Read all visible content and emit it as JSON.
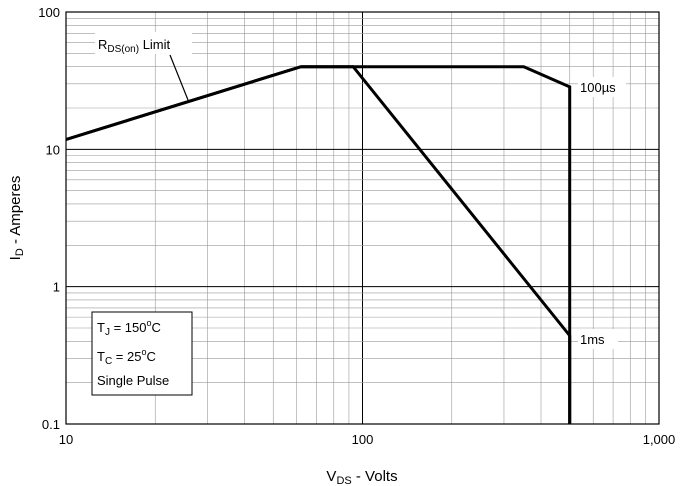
{
  "chart_data": {
    "type": "line",
    "x_scale": "log",
    "y_scale": "log",
    "xlim": [
      10,
      1000
    ],
    "ylim": [
      0.1,
      100
    ],
    "xlabel": {
      "main": "V",
      "sub": "DS",
      "rest": " - Volts"
    },
    "ylabel": {
      "main": "I",
      "sub": "D",
      "rest": " - Amperes"
    },
    "x_ticks": [
      {
        "value": 10,
        "label": "10"
      },
      {
        "value": 100,
        "label": "100"
      },
      {
        "value": 1000,
        "label": "1,000"
      }
    ],
    "y_ticks": [
      {
        "value": 100,
        "label": "100"
      },
      {
        "value": 10,
        "label": "10"
      },
      {
        "value": 1,
        "label": "1"
      },
      {
        "value": 0.1,
        "label": "0.1"
      }
    ],
    "grid": true,
    "series": [
      {
        "name": "100µs",
        "points": [
          [
            10,
            11.8
          ],
          [
            62,
            40
          ],
          [
            350,
            40
          ],
          [
            500,
            28.5
          ],
          [
            500,
            0.1
          ]
        ]
      },
      {
        "name": "1ms",
        "points": [
          [
            10,
            11.8
          ],
          [
            62,
            40
          ],
          [
            93,
            40
          ],
          [
            500,
            0.44
          ],
          [
            500,
            0.1
          ]
        ]
      }
    ],
    "rds_label": {
      "main": "R",
      "sub": "DS(on)",
      "rest": " Limit"
    },
    "conditions": {
      "tj": {
        "main": "T",
        "sub": "J",
        "rest": " = 150",
        "sup": "o",
        "unit": "C"
      },
      "tc": {
        "main": "T",
        "sub": "C",
        "rest": " = 25",
        "sup": "o",
        "unit": "C"
      },
      "pulse": "Single Pulse"
    }
  }
}
